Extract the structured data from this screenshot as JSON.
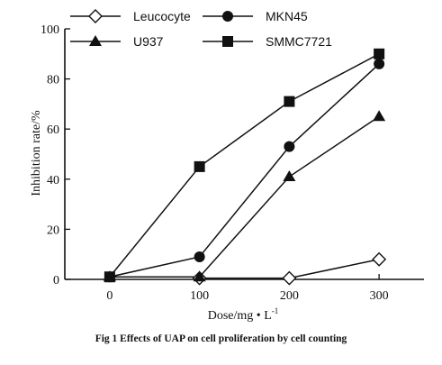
{
  "chart_data": {
    "type": "line",
    "x": [
      0,
      100,
      200,
      300
    ],
    "xticks": [
      "0",
      "100",
      "200",
      "300"
    ],
    "yticks": [
      "0",
      "20",
      "40",
      "60",
      "80",
      "100"
    ],
    "xlim": [
      -50,
      350
    ],
    "ylim": [
      0,
      100
    ],
    "xlabel": "Dose/mg • L",
    "xlabel_sup": "-1",
    "ylabel": "Inhibition rate/%",
    "grid": false,
    "legend_position": "top",
    "series": [
      {
        "name": "Leucocyte",
        "marker": "diamond-open",
        "points": [
          [
            100,
            0.5
          ],
          [
            200,
            0.5
          ],
          [
            300,
            8
          ]
        ]
      },
      {
        "name": "MKN45",
        "marker": "circle",
        "points": [
          [
            0,
            1
          ],
          [
            100,
            9
          ],
          [
            200,
            53
          ],
          [
            300,
            86
          ]
        ]
      },
      {
        "name": "U937",
        "marker": "triangle",
        "points": [
          [
            0,
            1
          ],
          [
            100,
            1
          ],
          [
            200,
            41
          ],
          [
            300,
            65
          ]
        ]
      },
      {
        "name": "SMMC7721",
        "marker": "square",
        "points": [
          [
            0,
            1
          ],
          [
            100,
            45
          ],
          [
            200,
            71
          ],
          [
            300,
            90
          ]
        ]
      }
    ]
  },
  "caption": "Fig 1    Effects of UAP on cell proliferation by cell counting"
}
